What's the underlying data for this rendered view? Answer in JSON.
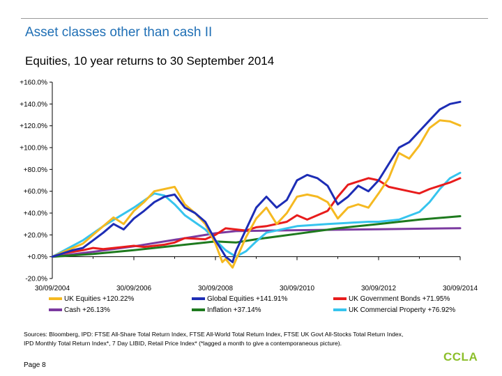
{
  "slide": {
    "title": "Asset classes other than cash II",
    "page": "Page 8",
    "logo": "CCLA",
    "sources_line1": "Sources: Bloomberg, IPD: FTSE All-Share Total Return Index, FTSE All-World Total Return Index, FTSE UK Govt All-Stocks Total Return Index,",
    "sources_line2": "IPD Monthly Total Return Index*, 7 Day LIBID, Retail Price Index* (*lagged a month to give a contemporaneous picture)."
  },
  "chart_data": {
    "type": "line",
    "title": "Equities, 10 year returns to 30 September 2014",
    "xlabel": "",
    "ylabel": "",
    "x_ticks": [
      "30/09/2004",
      "30/09/2006",
      "30/09/2008",
      "30/09/2010",
      "30/09/2012",
      "30/09/2014"
    ],
    "y_ticks": [
      "-20.0%",
      "+0.0%",
      "+20.0%",
      "+40.0%",
      "+60.0%",
      "+80.0%",
      "+100.0%",
      "+120.0%",
      "+140.0%",
      "+160.0%"
    ],
    "ylim": [
      -20,
      160
    ],
    "xlim": [
      2004.75,
      2014.75
    ],
    "grid": false,
    "legend_position": "bottom",
    "series": [
      {
        "name": "UK Equities +120.22%",
        "color": "#f5b921",
        "x": [
          2004.75,
          2005.0,
          2005.25,
          2005.5,
          2005.75,
          2006.0,
          2006.25,
          2006.5,
          2006.75,
          2007.0,
          2007.25,
          2007.5,
          2007.75,
          2008.0,
          2008.25,
          2008.5,
          2008.75,
          2008.92,
          2009.0,
          2009.17,
          2009.25,
          2009.5,
          2009.75,
          2010.0,
          2010.25,
          2010.5,
          2010.75,
          2011.0,
          2011.25,
          2011.5,
          2011.75,
          2012.0,
          2012.25,
          2012.5,
          2012.75,
          2013.0,
          2013.25,
          2013.5,
          2013.75,
          2014.0,
          2014.25,
          2014.5,
          2014.75
        ],
        "values": [
          0,
          4,
          8,
          12,
          20,
          28,
          36,
          30,
          42,
          50,
          60,
          62,
          64,
          48,
          40,
          30,
          12,
          -5,
          -2,
          -10,
          -3,
          18,
          35,
          45,
          30,
          40,
          55,
          57,
          55,
          50,
          35,
          45,
          48,
          45,
          58,
          72,
          95,
          90,
          102,
          118,
          125,
          124,
          120.22
        ]
      },
      {
        "name": "Global Equities +141.91%",
        "color": "#1d2db5",
        "x": [
          2004.75,
          2005.0,
          2005.25,
          2005.5,
          2005.75,
          2006.0,
          2006.25,
          2006.5,
          2006.75,
          2007.0,
          2007.25,
          2007.5,
          2007.75,
          2008.0,
          2008.25,
          2008.5,
          2008.75,
          2008.92,
          2009.0,
          2009.17,
          2009.25,
          2009.5,
          2009.75,
          2010.0,
          2010.25,
          2010.5,
          2010.75,
          2011.0,
          2011.25,
          2011.5,
          2011.75,
          2012.0,
          2012.25,
          2012.5,
          2012.75,
          2013.0,
          2013.25,
          2013.5,
          2013.75,
          2014.0,
          2014.25,
          2014.5,
          2014.75
        ],
        "values": [
          0,
          3,
          6,
          8,
          15,
          22,
          30,
          25,
          35,
          42,
          50,
          55,
          57,
          45,
          40,
          32,
          15,
          5,
          0,
          -5,
          5,
          25,
          45,
          55,
          45,
          52,
          70,
          75,
          72,
          65,
          48,
          55,
          65,
          60,
          70,
          85,
          100,
          105,
          115,
          125,
          135,
          140,
          141.91
        ]
      },
      {
        "name": "Cash +26.13%",
        "color": "#7b3aa0",
        "x": [
          2004.75,
          2005.75,
          2006.75,
          2007.75,
          2008.75,
          2009.25,
          2010.75,
          2012.75,
          2014.75
        ],
        "values": [
          0,
          4.5,
          9.5,
          15.5,
          21.5,
          23.5,
          24.3,
          25.2,
          26.13
        ]
      },
      {
        "name": "Inflation +37.14%",
        "color": "#1e7a1e",
        "x": [
          2004.75,
          2005.75,
          2006.75,
          2007.75,
          2008.75,
          2009.25,
          2009.75,
          2010.75,
          2011.75,
          2012.75,
          2013.75,
          2014.75
        ],
        "values": [
          0,
          2.5,
          6,
          10,
          14,
          13,
          16,
          21,
          26,
          30,
          34,
          37.14
        ]
      },
      {
        "name": "UK Government Bonds +71.95%",
        "color": "#e81c1c",
        "x": [
          2004.75,
          2005.0,
          2005.5,
          2005.75,
          2006.0,
          2006.5,
          2006.75,
          2007.0,
          2007.5,
          2007.75,
          2008.0,
          2008.5,
          2008.75,
          2009.0,
          2009.5,
          2009.75,
          2010.0,
          2010.5,
          2010.75,
          2011.0,
          2011.5,
          2011.75,
          2012.0,
          2012.5,
          2012.75,
          2013.0,
          2013.5,
          2013.75,
          2014.0,
          2014.5,
          2014.75
        ],
        "values": [
          0,
          3,
          6,
          8,
          7,
          9,
          10,
          9,
          11,
          13,
          17,
          16,
          20,
          26,
          24,
          27,
          28,
          32,
          38,
          34,
          42,
          55,
          66,
          72,
          70,
          64,
          60,
          58,
          62,
          68,
          71.95
        ]
      },
      {
        "name": "UK Commercial Property +76.92%",
        "color": "#36c4ee",
        "x": [
          2004.75,
          2005.5,
          2006.0,
          2006.75,
          2007.25,
          2007.5,
          2007.75,
          2008.0,
          2008.5,
          2008.75,
          2009.0,
          2009.25,
          2009.5,
          2009.75,
          2010.0,
          2010.5,
          2010.75,
          2011.5,
          2012.0,
          2012.5,
          2012.75,
          2013.25,
          2013.75,
          2014.0,
          2014.25,
          2014.5,
          2014.75
        ],
        "values": [
          0,
          15,
          28,
          45,
          58,
          56,
          48,
          38,
          25,
          15,
          6,
          0,
          5,
          14,
          22,
          26,
          28,
          30,
          31,
          32,
          32,
          34,
          41,
          50,
          62,
          72,
          76.92
        ]
      }
    ]
  }
}
